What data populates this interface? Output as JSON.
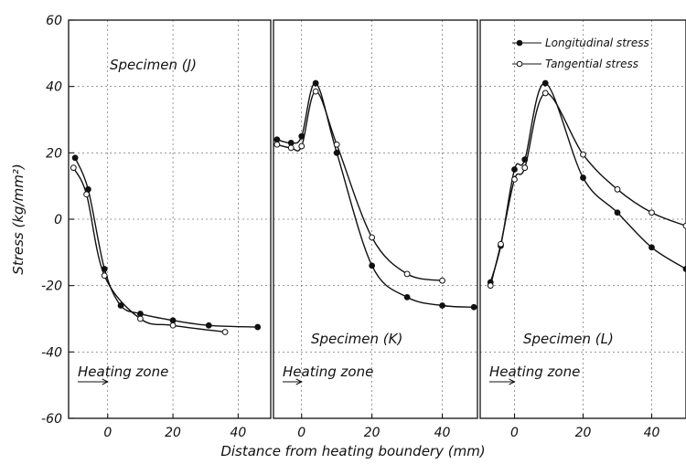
{
  "chart_data": [
    {
      "type": "line",
      "panel_label": "Specimen (J)",
      "zone_label": "Heating zone",
      "xlim": [
        -12,
        50
      ],
      "ylim": [
        -60,
        60
      ],
      "xticks": [
        0,
        20,
        40
      ],
      "series": [
        {
          "name": "Longitudinal stress",
          "marker": "filled",
          "x": [
            -10,
            -6,
            -1,
            4,
            10,
            20,
            31,
            46
          ],
          "y": [
            18.5,
            9,
            -15,
            -26,
            -28.5,
            -30.5,
            -32,
            -32.5
          ]
        },
        {
          "name": "Tangential stress",
          "marker": "open",
          "x": [
            -10.5,
            -6.5,
            -1,
            10,
            20,
            36
          ],
          "y": [
            15.5,
            7.5,
            -17,
            -30,
            -32,
            -34
          ]
        }
      ]
    },
    {
      "type": "line",
      "panel_label": "Specimen (K)",
      "zone_label": "Heating zone",
      "xlim": [
        -8,
        50
      ],
      "ylim": [
        -60,
        60
      ],
      "xticks": [
        0,
        20,
        40
      ],
      "series": [
        {
          "name": "Longitudinal stress",
          "marker": "filled",
          "x": [
            -7,
            -3,
            0,
            4,
            10,
            20,
            30,
            40,
            49
          ],
          "y": [
            24,
            23,
            25,
            41,
            20,
            -14,
            -23.5,
            -26,
            -26.5
          ]
        },
        {
          "name": "Tangential stress",
          "marker": "open",
          "x": [
            -7,
            -3,
            0,
            4,
            10,
            20,
            30,
            40
          ],
          "y": [
            22.5,
            21.5,
            22,
            38.5,
            22.5,
            -5.5,
            -16.5,
            -18.5
          ]
        }
      ]
    },
    {
      "type": "line",
      "panel_label": "Specimen (L)",
      "zone_label": "Heating zone",
      "xlim": [
        -10,
        50
      ],
      "ylim": [
        -60,
        60
      ],
      "xticks": [
        0,
        20,
        40
      ],
      "series": [
        {
          "name": "Longitudinal stress",
          "marker": "filled",
          "x": [
            -7,
            -4,
            0,
            3,
            9,
            20,
            30,
            40,
            50
          ],
          "y": [
            -19,
            -8,
            15,
            18,
            41,
            12.5,
            2,
            -8.5,
            -15
          ]
        },
        {
          "name": "Tangential stress",
          "marker": "open",
          "x": [
            -7,
            -4,
            0,
            3,
            9,
            20,
            30,
            40,
            50
          ],
          "y": [
            -20,
            -7.5,
            12,
            15.5,
            38,
            19.5,
            9,
            2,
            -2
          ]
        }
      ]
    }
  ],
  "axes": {
    "ylabel": "Stress (kg/mm²)",
    "xlabel": "Distance from  heating boundery  (mm)",
    "yticks": [
      60,
      40,
      20,
      0,
      -20,
      -40,
      -60
    ]
  },
  "legend": {
    "position": "top-right",
    "entries": [
      "Longitudinal stress",
      "Tangential stress"
    ]
  },
  "grid": true
}
